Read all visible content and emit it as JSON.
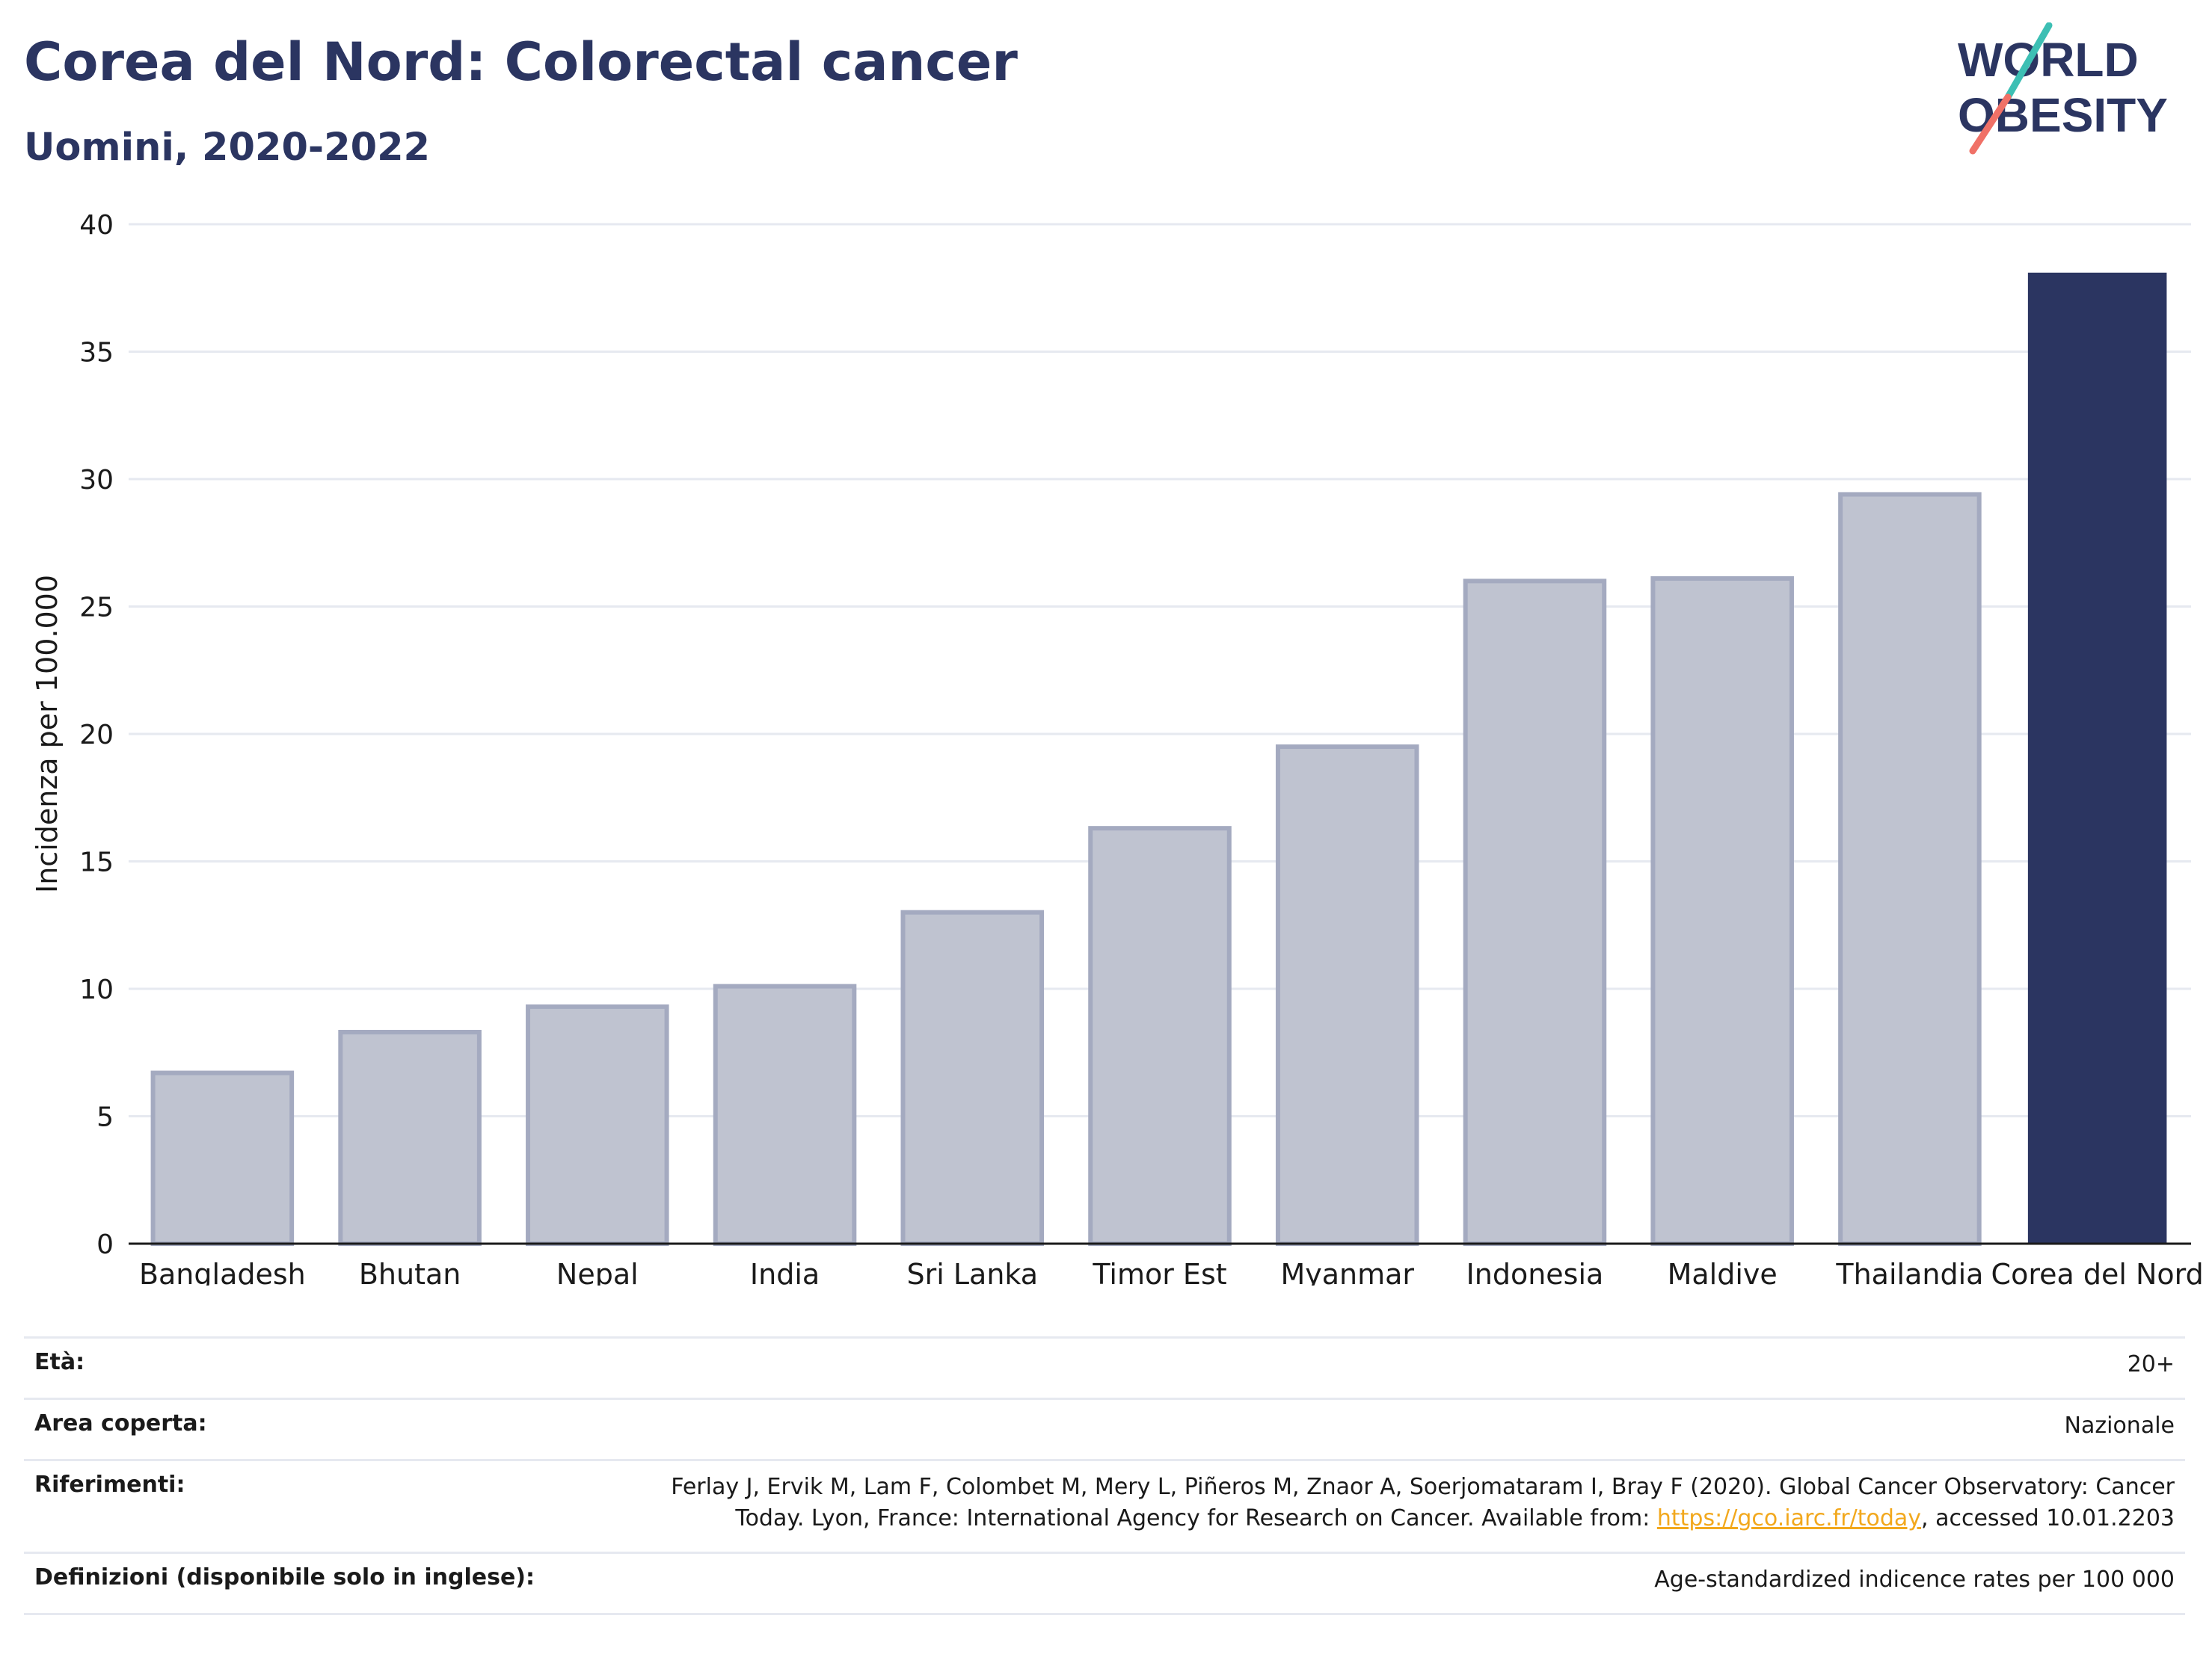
{
  "header": {
    "title": "Corea del Nord: Colorectal cancer",
    "subtitle": "Uomini, 2020-2022"
  },
  "logo": {
    "line1": "WORLD",
    "line2": "OBESITY"
  },
  "colors": {
    "highlight": "#2b3561",
    "bar_fill": "#bfc3d0",
    "bar_border": "#a4aac0",
    "grid": "#e6e9f0",
    "accent_teal": "#3dbfb4",
    "accent_coral": "#f07167"
  },
  "chart_data": {
    "type": "bar",
    "ylabel": "Incidenza per 100.000",
    "xlabel": "",
    "ylim": [
      0,
      40
    ],
    "yticks": [
      0,
      5,
      10,
      15,
      20,
      25,
      30,
      35,
      40
    ],
    "grid": true,
    "categories": [
      "Bangladesh",
      "Bhutan",
      "Nepal",
      "India",
      "Sri Lanka",
      "Timor Est",
      "Myanmar",
      "Indonesia",
      "Maldive",
      "Thailandia",
      "Corea del Nord"
    ],
    "values": [
      6.7,
      8.3,
      9.3,
      10.1,
      13.0,
      16.3,
      19.5,
      26.0,
      26.1,
      29.4,
      38.1
    ],
    "highlight": "Corea del Nord"
  },
  "meta": {
    "age_label": "Età:",
    "age_value": "20+",
    "area_label": "Area coperta:",
    "area_value": "Nazionale",
    "ref_label": "Riferimenti:",
    "ref_line1": "Ferlay J, Ervik M, Lam F, Colombet M, Mery L, Piñeros M, Znaor A, Soerjomataram I, Bray F (2020). Global Cancer Observatory: Cancer",
    "ref_line2_pre": "Today. Lyon, France: International Agency for Research on Cancer. Available from: ",
    "ref_link": "https://gco.iarc.fr/today",
    "ref_line2_post": ", accessed 10.01.2203",
    "def_label": "Definizioni (disponibile solo in inglese):",
    "def_value": "Age-standardized indicence rates per 100 000"
  }
}
